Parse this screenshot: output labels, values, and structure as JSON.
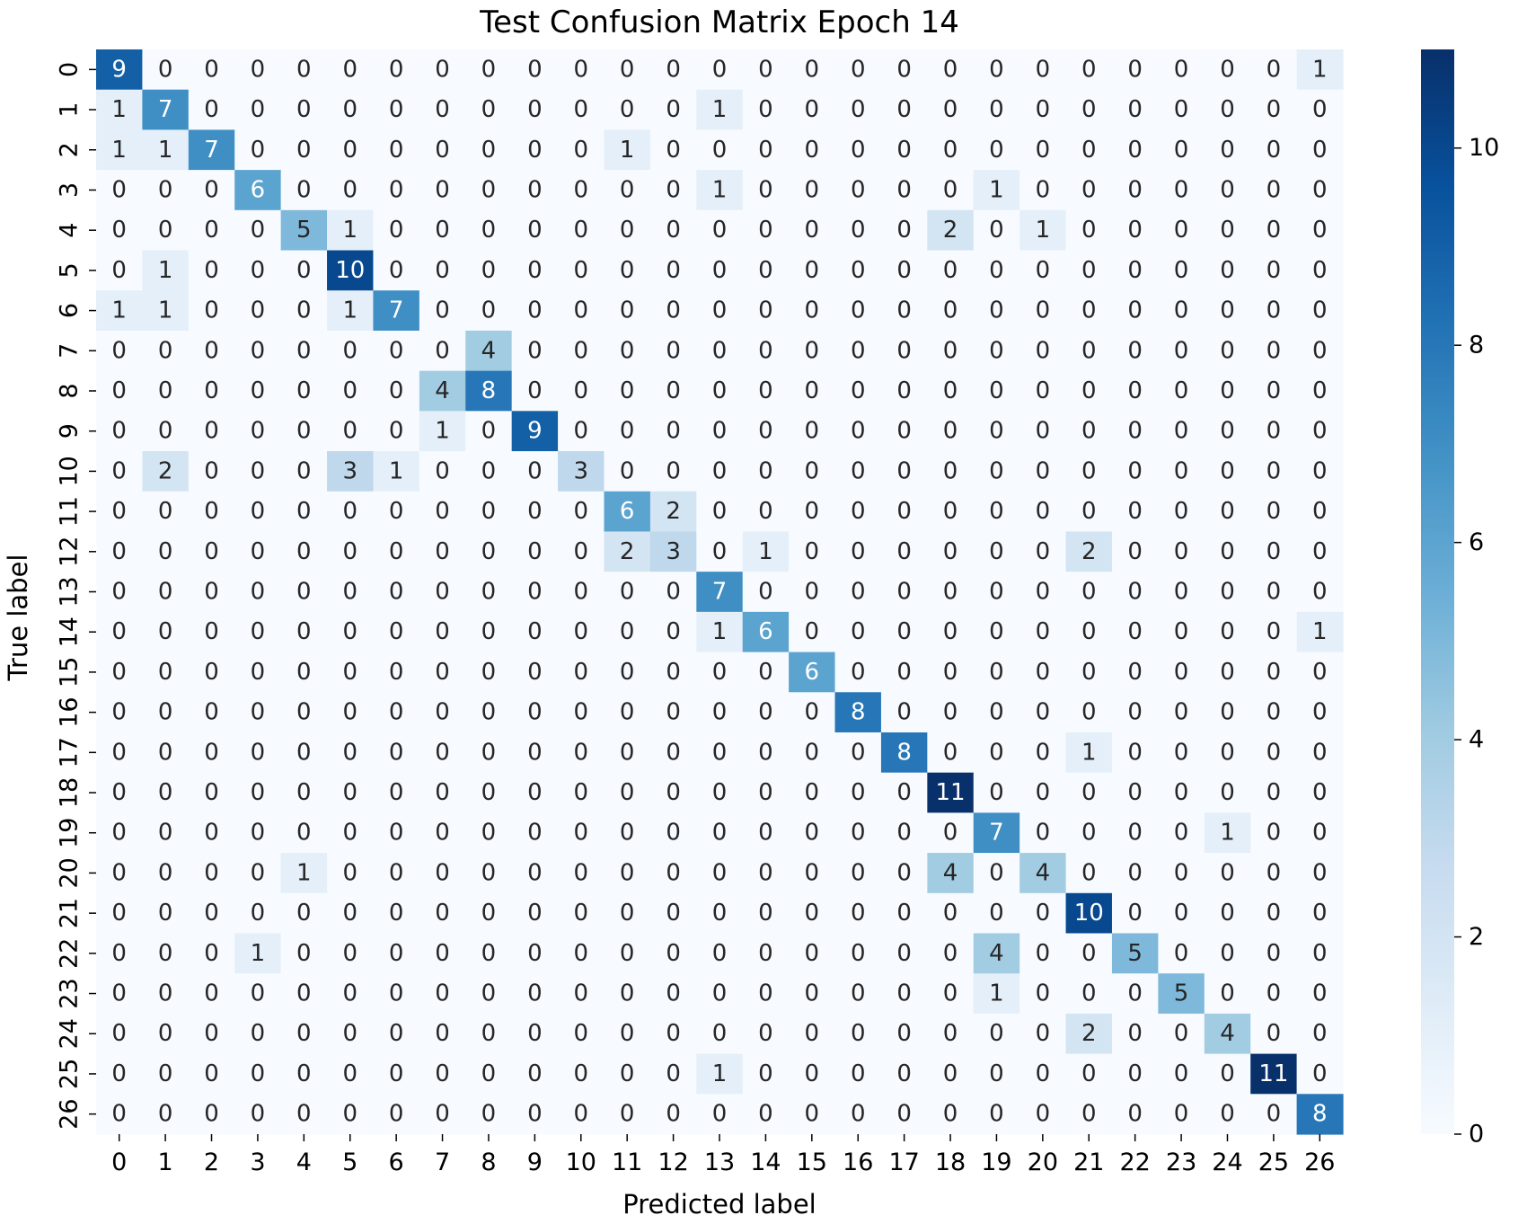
{
  "chart_data": {
    "type": "heatmap",
    "title": "Test Confusion Matrix Epoch 14",
    "xlabel": "Predicted label",
    "ylabel": "True label",
    "x_categories": [
      "0",
      "1",
      "2",
      "3",
      "4",
      "5",
      "6",
      "7",
      "8",
      "9",
      "10",
      "11",
      "12",
      "13",
      "14",
      "15",
      "16",
      "17",
      "18",
      "19",
      "20",
      "21",
      "22",
      "23",
      "24",
      "25",
      "26"
    ],
    "y_categories": [
      "0",
      "1",
      "2",
      "3",
      "4",
      "5",
      "6",
      "7",
      "8",
      "9",
      "10",
      "11",
      "12",
      "13",
      "14",
      "15",
      "16",
      "17",
      "18",
      "19",
      "20",
      "21",
      "22",
      "23",
      "24",
      "25",
      "26"
    ],
    "matrix": [
      [
        9,
        0,
        0,
        0,
        0,
        0,
        0,
        0,
        0,
        0,
        0,
        0,
        0,
        0,
        0,
        0,
        0,
        0,
        0,
        0,
        0,
        0,
        0,
        0,
        0,
        0,
        1
      ],
      [
        1,
        7,
        0,
        0,
        0,
        0,
        0,
        0,
        0,
        0,
        0,
        0,
        0,
        1,
        0,
        0,
        0,
        0,
        0,
        0,
        0,
        0,
        0,
        0,
        0,
        0,
        0
      ],
      [
        1,
        1,
        7,
        0,
        0,
        0,
        0,
        0,
        0,
        0,
        0,
        1,
        0,
        0,
        0,
        0,
        0,
        0,
        0,
        0,
        0,
        0,
        0,
        0,
        0,
        0,
        0
      ],
      [
        0,
        0,
        0,
        6,
        0,
        0,
        0,
        0,
        0,
        0,
        0,
        0,
        0,
        1,
        0,
        0,
        0,
        0,
        0,
        1,
        0,
        0,
        0,
        0,
        0,
        0,
        0
      ],
      [
        0,
        0,
        0,
        0,
        5,
        1,
        0,
        0,
        0,
        0,
        0,
        0,
        0,
        0,
        0,
        0,
        0,
        0,
        2,
        0,
        1,
        0,
        0,
        0,
        0,
        0,
        0
      ],
      [
        0,
        1,
        0,
        0,
        0,
        10,
        0,
        0,
        0,
        0,
        0,
        0,
        0,
        0,
        0,
        0,
        0,
        0,
        0,
        0,
        0,
        0,
        0,
        0,
        0,
        0,
        0
      ],
      [
        1,
        1,
        0,
        0,
        0,
        1,
        7,
        0,
        0,
        0,
        0,
        0,
        0,
        0,
        0,
        0,
        0,
        0,
        0,
        0,
        0,
        0,
        0,
        0,
        0,
        0,
        0
      ],
      [
        0,
        0,
        0,
        0,
        0,
        0,
        0,
        0,
        4,
        0,
        0,
        0,
        0,
        0,
        0,
        0,
        0,
        0,
        0,
        0,
        0,
        0,
        0,
        0,
        0,
        0,
        0
      ],
      [
        0,
        0,
        0,
        0,
        0,
        0,
        0,
        4,
        8,
        0,
        0,
        0,
        0,
        0,
        0,
        0,
        0,
        0,
        0,
        0,
        0,
        0,
        0,
        0,
        0,
        0,
        0
      ],
      [
        0,
        0,
        0,
        0,
        0,
        0,
        0,
        1,
        0,
        9,
        0,
        0,
        0,
        0,
        0,
        0,
        0,
        0,
        0,
        0,
        0,
        0,
        0,
        0,
        0,
        0,
        0
      ],
      [
        0,
        2,
        0,
        0,
        0,
        3,
        1,
        0,
        0,
        0,
        3,
        0,
        0,
        0,
        0,
        0,
        0,
        0,
        0,
        0,
        0,
        0,
        0,
        0,
        0,
        0,
        0
      ],
      [
        0,
        0,
        0,
        0,
        0,
        0,
        0,
        0,
        0,
        0,
        0,
        6,
        2,
        0,
        0,
        0,
        0,
        0,
        0,
        0,
        0,
        0,
        0,
        0,
        0,
        0,
        0
      ],
      [
        0,
        0,
        0,
        0,
        0,
        0,
        0,
        0,
        0,
        0,
        0,
        2,
        3,
        0,
        1,
        0,
        0,
        0,
        0,
        0,
        0,
        2,
        0,
        0,
        0,
        0,
        0
      ],
      [
        0,
        0,
        0,
        0,
        0,
        0,
        0,
        0,
        0,
        0,
        0,
        0,
        0,
        7,
        0,
        0,
        0,
        0,
        0,
        0,
        0,
        0,
        0,
        0,
        0,
        0,
        0
      ],
      [
        0,
        0,
        0,
        0,
        0,
        0,
        0,
        0,
        0,
        0,
        0,
        0,
        0,
        1,
        6,
        0,
        0,
        0,
        0,
        0,
        0,
        0,
        0,
        0,
        0,
        0,
        1
      ],
      [
        0,
        0,
        0,
        0,
        0,
        0,
        0,
        0,
        0,
        0,
        0,
        0,
        0,
        0,
        0,
        6,
        0,
        0,
        0,
        0,
        0,
        0,
        0,
        0,
        0,
        0,
        0
      ],
      [
        0,
        0,
        0,
        0,
        0,
        0,
        0,
        0,
        0,
        0,
        0,
        0,
        0,
        0,
        0,
        0,
        8,
        0,
        0,
        0,
        0,
        0,
        0,
        0,
        0,
        0,
        0
      ],
      [
        0,
        0,
        0,
        0,
        0,
        0,
        0,
        0,
        0,
        0,
        0,
        0,
        0,
        0,
        0,
        0,
        0,
        8,
        0,
        0,
        0,
        1,
        0,
        0,
        0,
        0,
        0
      ],
      [
        0,
        0,
        0,
        0,
        0,
        0,
        0,
        0,
        0,
        0,
        0,
        0,
        0,
        0,
        0,
        0,
        0,
        0,
        11,
        0,
        0,
        0,
        0,
        0,
        0,
        0,
        0
      ],
      [
        0,
        0,
        0,
        0,
        0,
        0,
        0,
        0,
        0,
        0,
        0,
        0,
        0,
        0,
        0,
        0,
        0,
        0,
        0,
        7,
        0,
        0,
        0,
        0,
        1,
        0,
        0
      ],
      [
        0,
        0,
        0,
        0,
        1,
        0,
        0,
        0,
        0,
        0,
        0,
        0,
        0,
        0,
        0,
        0,
        0,
        0,
        4,
        0,
        4,
        0,
        0,
        0,
        0,
        0,
        0
      ],
      [
        0,
        0,
        0,
        0,
        0,
        0,
        0,
        0,
        0,
        0,
        0,
        0,
        0,
        0,
        0,
        0,
        0,
        0,
        0,
        0,
        0,
        10,
        0,
        0,
        0,
        0,
        0
      ],
      [
        0,
        0,
        0,
        1,
        0,
        0,
        0,
        0,
        0,
        0,
        0,
        0,
        0,
        0,
        0,
        0,
        0,
        0,
        0,
        4,
        0,
        0,
        5,
        0,
        0,
        0,
        0
      ],
      [
        0,
        0,
        0,
        0,
        0,
        0,
        0,
        0,
        0,
        0,
        0,
        0,
        0,
        0,
        0,
        0,
        0,
        0,
        0,
        1,
        0,
        0,
        0,
        5,
        0,
        0,
        0
      ],
      [
        0,
        0,
        0,
        0,
        0,
        0,
        0,
        0,
        0,
        0,
        0,
        0,
        0,
        0,
        0,
        0,
        0,
        0,
        0,
        0,
        0,
        2,
        0,
        0,
        4,
        0,
        0
      ],
      [
        0,
        0,
        0,
        0,
        0,
        0,
        0,
        0,
        0,
        0,
        0,
        0,
        0,
        1,
        0,
        0,
        0,
        0,
        0,
        0,
        0,
        0,
        0,
        0,
        0,
        11,
        0
      ],
      [
        0,
        0,
        0,
        0,
        0,
        0,
        0,
        0,
        0,
        0,
        0,
        0,
        0,
        0,
        0,
        0,
        0,
        0,
        0,
        0,
        0,
        0,
        0,
        0,
        0,
        0,
        8
      ]
    ],
    "colorbar": {
      "min": 0,
      "max": 11,
      "ticks": [
        0,
        2,
        4,
        6,
        8,
        10
      ],
      "colormap": "Blues",
      "low_color": "#f7fbff",
      "high_color": "#08306b"
    },
    "annotations": "cell counts",
    "grid": false
  }
}
